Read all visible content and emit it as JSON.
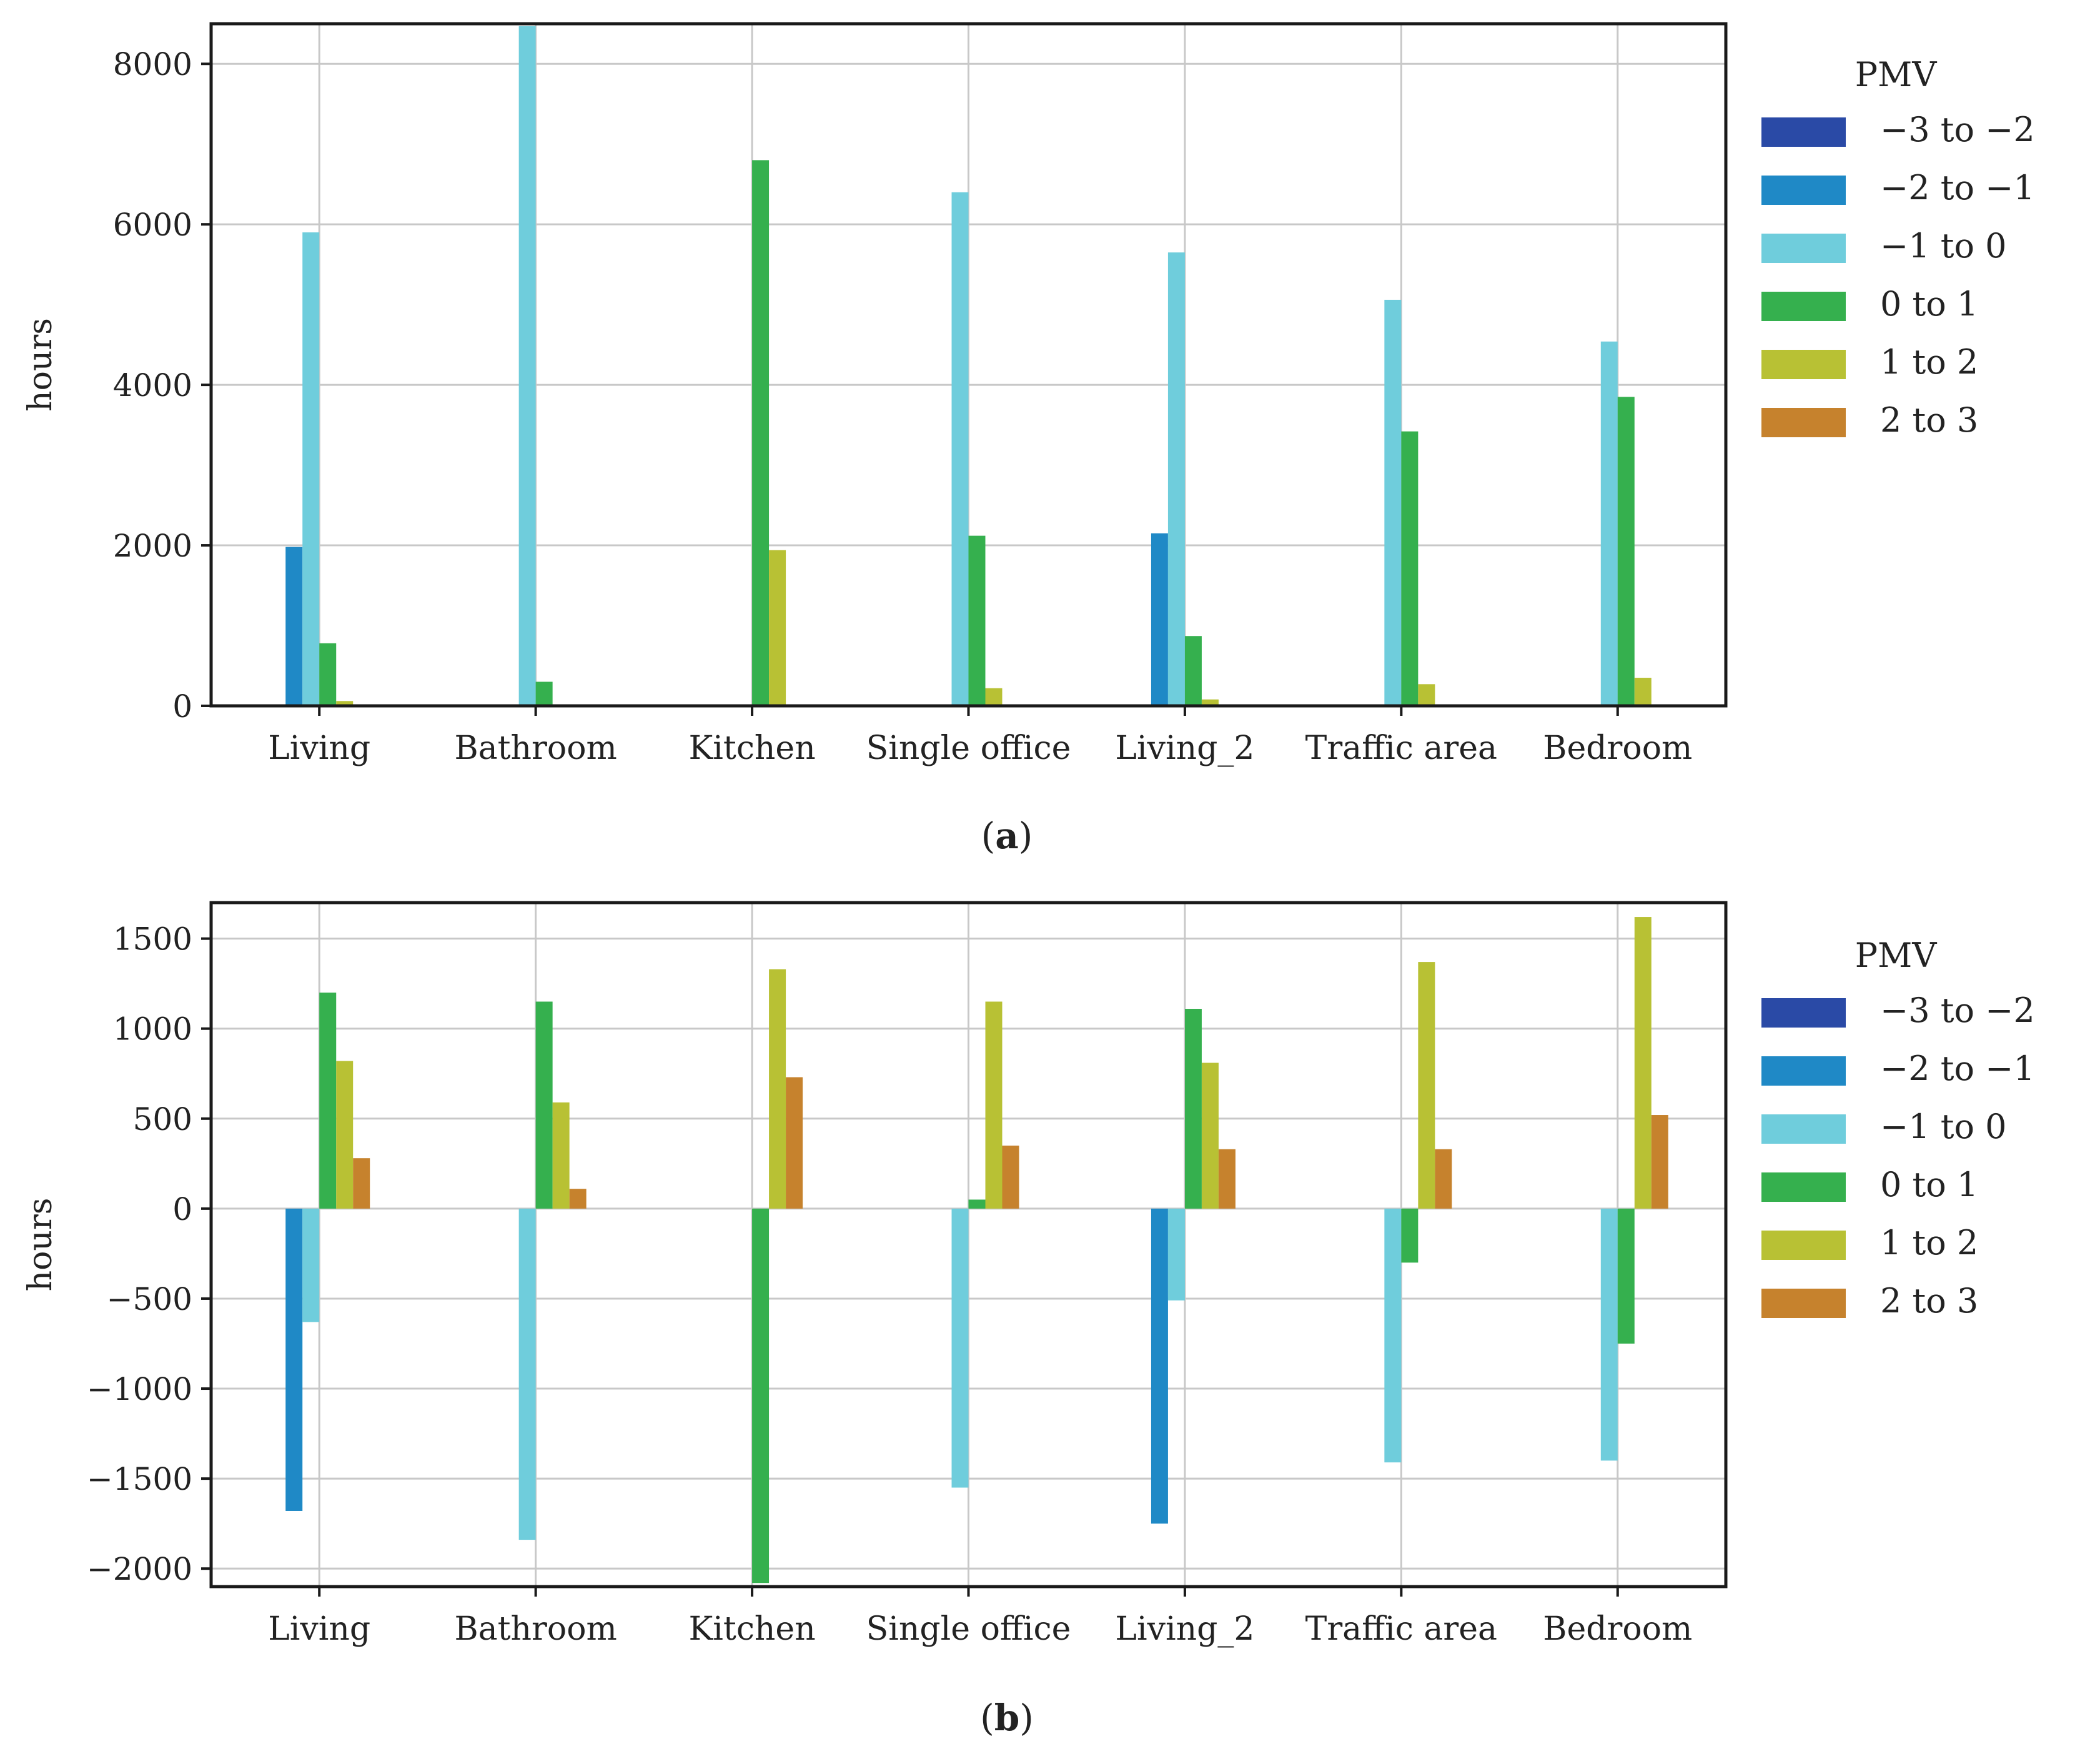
{
  "chart_data": [
    {
      "type": "bar",
      "panel_label": "(a)",
      "panel_letter": "a",
      "ylabel": "hours",
      "xlabel": "",
      "ylim": [
        0,
        8500
      ],
      "yticks": [
        0,
        2000,
        4000,
        6000,
        8000
      ],
      "ytick_labels": [
        "0",
        "2000",
        "4000",
        "6000",
        "8000"
      ],
      "grid": true,
      "legend": {
        "title": "PMV",
        "placement": "outside-right"
      },
      "categories": [
        "Living",
        "Bathroom",
        "Kitchen",
        "Single office",
        "Living_2",
        "Traffic area",
        "Bedroom"
      ],
      "series": [
        {
          "name": "−3 to −2",
          "color": "#2a4aa6",
          "values": [
            0,
            0,
            0,
            0,
            0,
            0,
            0
          ]
        },
        {
          "name": "−2 to −1",
          "color": "#1f89c6",
          "values": [
            1980,
            0,
            0,
            0,
            2150,
            0,
            0
          ]
        },
        {
          "name": "−1 to 0",
          "color": "#6fcddc",
          "values": [
            5900,
            8470,
            0,
            6400,
            5650,
            5060,
            4540
          ]
        },
        {
          "name": "0 to 1",
          "color": "#35b04e",
          "values": [
            780,
            300,
            6800,
            2120,
            870,
            3420,
            3850
          ]
        },
        {
          "name": "1 to 2",
          "color": "#b8c134",
          "values": [
            60,
            0,
            1940,
            220,
            80,
            270,
            350
          ]
        },
        {
          "name": "2 to 3",
          "color": "#c6822d",
          "values": [
            0,
            0,
            0,
            0,
            0,
            0,
            0
          ]
        }
      ]
    },
    {
      "type": "bar",
      "panel_label": "(b)",
      "panel_letter": "b",
      "ylabel": "hours",
      "xlabel": "",
      "ylim": [
        -2100,
        1700
      ],
      "yticks": [
        -2000,
        -1500,
        -1000,
        -500,
        0,
        500,
        1000,
        1500
      ],
      "ytick_labels": [
        "−2000",
        "−1500",
        "−1000",
        "−500",
        "0",
        "500",
        "1000",
        "1500"
      ],
      "grid": true,
      "legend": {
        "title": "PMV",
        "placement": "outside-right"
      },
      "categories": [
        "Living",
        "Bathroom",
        "Kitchen",
        "Single office",
        "Living_2",
        "Traffic area",
        "Bedroom"
      ],
      "series": [
        {
          "name": "−3 to −2",
          "color": "#2a4aa6",
          "values": [
            0,
            0,
            0,
            0,
            0,
            0,
            0
          ]
        },
        {
          "name": "−2 to −1",
          "color": "#1f89c6",
          "values": [
            -1680,
            0,
            0,
            0,
            -1750,
            0,
            0
          ]
        },
        {
          "name": "−1 to 0",
          "color": "#6fcddc",
          "values": [
            -630,
            -1840,
            0,
            -1550,
            -510,
            -1410,
            -1400
          ]
        },
        {
          "name": "0 to 1",
          "color": "#35b04e",
          "values": [
            1200,
            1150,
            -2080,
            50,
            1110,
            -300,
            -750
          ]
        },
        {
          "name": "1 to 2",
          "color": "#b8c134",
          "values": [
            820,
            590,
            1330,
            1150,
            810,
            1370,
            1620
          ]
        },
        {
          "name": "2 to 3",
          "color": "#c6822d",
          "values": [
            280,
            110,
            730,
            350,
            330,
            330,
            520
          ]
        }
      ]
    }
  ]
}
